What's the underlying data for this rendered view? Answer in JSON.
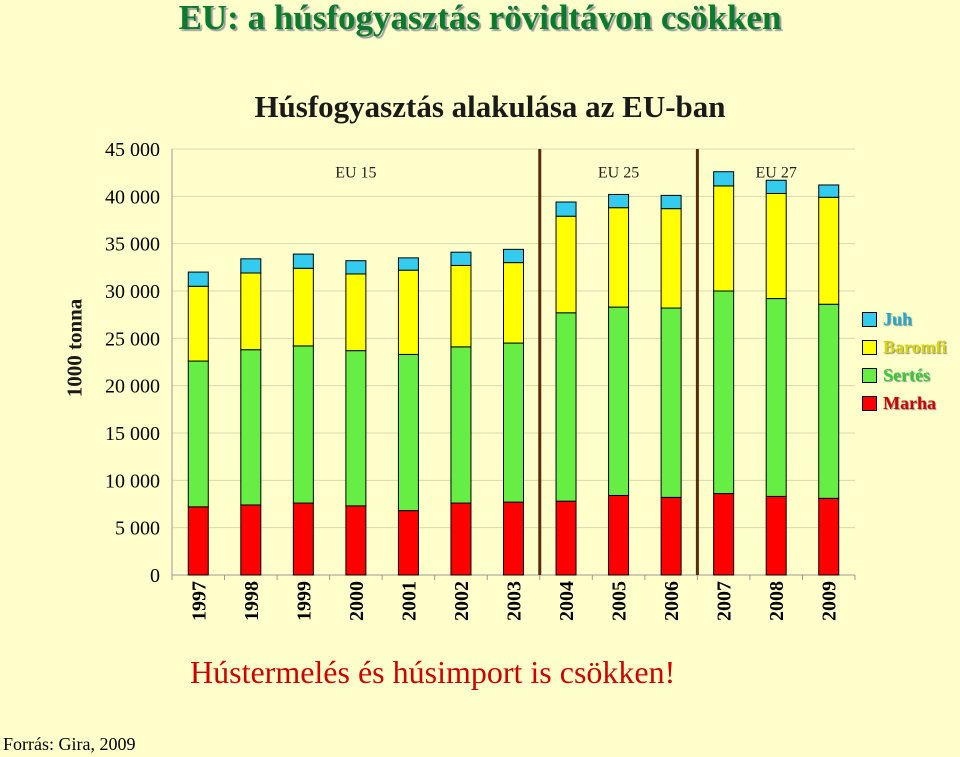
{
  "slide_title": "EU: a húsfogyasztás rövidtávon csökken",
  "footer_title": "Hústermelés és húsimport is csökken!",
  "source": "Forrás: Gira, 2009",
  "chart_data": {
    "type": "bar",
    "stacked": true,
    "title": "Húsfogyasztás alakulása az EU-ban",
    "xlabel": "",
    "ylabel": "1000 tonna",
    "ylim": [
      0,
      45000
    ],
    "yticks": [
      0,
      5000,
      10000,
      15000,
      20000,
      25000,
      30000,
      35000,
      40000,
      45000
    ],
    "ytick_labels": [
      "0",
      "5 000",
      "10 000",
      "15 000",
      "20 000",
      "25 000",
      "30 000",
      "35 000",
      "40 000",
      "45 000"
    ],
    "categories": [
      "1997",
      "1998",
      "1999",
      "2000",
      "2001",
      "2002",
      "2003",
      "2004",
      "2005",
      "2006",
      "2007",
      "2008",
      "2009"
    ],
    "series": [
      {
        "name": "Marha",
        "color": "#ff0000",
        "values": [
          7200,
          7400,
          7600,
          7300,
          6800,
          7600,
          7700,
          7800,
          8400,
          8200,
          8600,
          8300,
          8100
        ]
      },
      {
        "name": "Sertés",
        "color": "#66ee44",
        "values": [
          15400,
          16400,
          16600,
          16400,
          16500,
          16500,
          16800,
          19900,
          19900,
          20000,
          21400,
          20900,
          20500
        ]
      },
      {
        "name": "Baromfi",
        "color": "#ffff00",
        "values": [
          7900,
          8100,
          8200,
          8100,
          8900,
          8600,
          8500,
          10200,
          10500,
          10500,
          11100,
          11100,
          11300
        ]
      },
      {
        "name": "Juh",
        "color": "#33ccee",
        "values": [
          1500,
          1500,
          1500,
          1400,
          1300,
          1400,
          1400,
          1500,
          1400,
          1400,
          1500,
          1400,
          1300
        ]
      }
    ],
    "regions": [
      {
        "label": "EU 15",
        "start_index": 0,
        "end_index": 6
      },
      {
        "label": "EU 25",
        "start_index": 7,
        "end_index": 9
      },
      {
        "label": "EU 27",
        "start_index": 10,
        "end_index": 12
      }
    ],
    "legend_order": [
      "Juh",
      "Baromfi",
      "Sertés",
      "Marha"
    ],
    "legend_position": "right",
    "grid": true
  }
}
